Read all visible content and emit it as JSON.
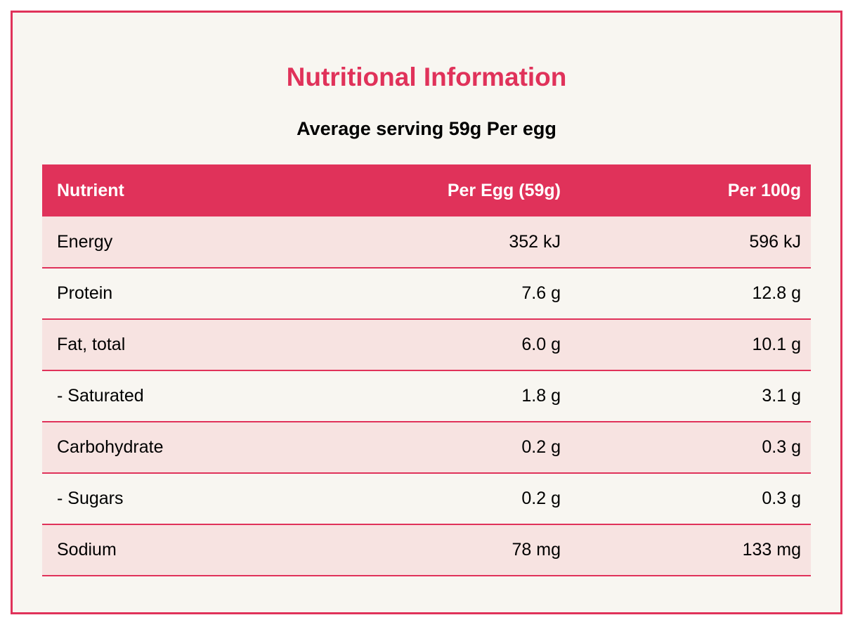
{
  "header": {
    "title": "Nutritional Information",
    "subtitle": "Average serving 59g Per egg"
  },
  "table": {
    "columns": [
      "Nutrient",
      "Per Egg (59g)",
      "Per 100g"
    ],
    "rows": [
      {
        "nutrient": "Energy",
        "per_egg": "352 kJ",
        "per_100g": "596 kJ"
      },
      {
        "nutrient": "Protein",
        "per_egg": "7.6 g",
        "per_100g": "12.8 g"
      },
      {
        "nutrient": "Fat, total",
        "per_egg": "6.0 g",
        "per_100g": "10.1 g"
      },
      {
        "nutrient": "- Saturated",
        "per_egg": "1.8 g",
        "per_100g": "3.1 g"
      },
      {
        "nutrient": "Carbohydrate",
        "per_egg": "0.2 g",
        "per_100g": "0.3 g"
      },
      {
        "nutrient": "- Sugars",
        "per_egg": "0.2 g",
        "per_100g": "0.3 g"
      },
      {
        "nutrient": "Sodium",
        "per_egg": "78 mg",
        "per_100g": "133 mg"
      }
    ]
  },
  "colors": {
    "accent": "#e0325a",
    "row_alt": "#f7e3e1",
    "background": "#f8f6f1"
  }
}
